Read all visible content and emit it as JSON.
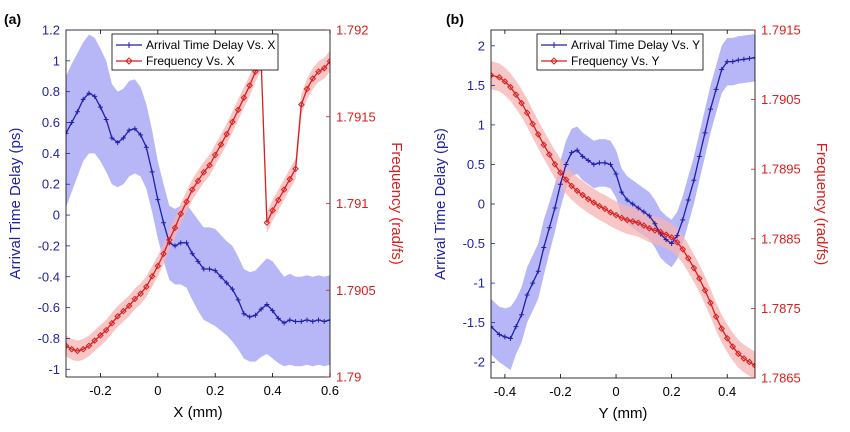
{
  "chart_data": [
    {
      "type": "line",
      "panel_label": "(a)",
      "xlabel": "X (mm)",
      "ylabel_left": "Arrival Time Delay (ps)",
      "ylabel_right": "Frequency (rad/fs)",
      "xlim": [
        -0.32,
        0.6
      ],
      "ylim_left": [
        -1.05,
        1.2
      ],
      "ylim_right": [
        1.79,
        1.792
      ],
      "x_ticks": [
        "-0.2",
        "0",
        "0.2",
        "0.4",
        "0.6"
      ],
      "x_tick_values": [
        -0.2,
        0,
        0.2,
        0.4,
        0.6
      ],
      "left_ticks": [
        "-1",
        "-0.8",
        "-0.6",
        "-0.4",
        "-0.2",
        "0",
        "0.2",
        "0.4",
        "0.6",
        "0.8",
        "1",
        "1.2"
      ],
      "left_tick_values": [
        -1,
        -0.8,
        -0.6,
        -0.4,
        -0.2,
        0,
        0.2,
        0.4,
        0.6,
        0.8,
        1,
        1.2
      ],
      "right_ticks": [
        "1.79",
        "1.7905",
        "1.791",
        "1.7915",
        "1.792"
      ],
      "right_tick_values": [
        1.79,
        1.7905,
        1.791,
        1.7915,
        1.792
      ],
      "legend_position": "top-left",
      "series": [
        {
          "name": "Arrival Time Delay Vs. X",
          "axis": "left",
          "color": "#1f1fa8",
          "band_color": "#9f9ff5",
          "marker": "plus",
          "x": [
            -0.32,
            -0.3,
            -0.28,
            -0.26,
            -0.24,
            -0.22,
            -0.2,
            -0.18,
            -0.16,
            -0.14,
            -0.12,
            -0.1,
            -0.08,
            -0.06,
            -0.04,
            -0.02,
            0.0,
            0.02,
            0.04,
            0.06,
            0.08,
            0.1,
            0.12,
            0.14,
            0.16,
            0.18,
            0.2,
            0.22,
            0.24,
            0.26,
            0.28,
            0.3,
            0.32,
            0.34,
            0.36,
            0.38,
            0.4,
            0.42,
            0.44,
            0.46,
            0.48,
            0.5,
            0.52,
            0.54,
            0.56,
            0.58,
            0.6
          ],
          "y": [
            0.53,
            0.6,
            0.67,
            0.75,
            0.79,
            0.77,
            0.7,
            0.62,
            0.5,
            0.47,
            0.5,
            0.55,
            0.56,
            0.52,
            0.44,
            0.28,
            0.1,
            -0.05,
            -0.18,
            -0.2,
            -0.18,
            -0.18,
            -0.25,
            -0.3,
            -0.35,
            -0.35,
            -0.36,
            -0.4,
            -0.44,
            -0.48,
            -0.55,
            -0.64,
            -0.66,
            -0.65,
            -0.61,
            -0.58,
            -0.62,
            -0.67,
            -0.7,
            -0.68,
            -0.69,
            -0.69,
            -0.68,
            -0.69,
            -0.68,
            -0.69,
            -0.68
          ],
          "band_lower": [
            0.05,
            0.15,
            0.25,
            0.35,
            0.4,
            0.4,
            0.35,
            0.28,
            0.2,
            0.18,
            0.2,
            0.25,
            0.27,
            0.25,
            0.17,
            0.02,
            -0.15,
            -0.3,
            -0.42,
            -0.45,
            -0.45,
            -0.47,
            -0.55,
            -0.62,
            -0.68,
            -0.7,
            -0.72,
            -0.75,
            -0.78,
            -0.82,
            -0.87,
            -0.93,
            -0.95,
            -0.95,
            -0.92,
            -0.9,
            -0.93,
            -0.96,
            -0.98,
            -0.97,
            -0.98,
            -0.98,
            -0.97,
            -0.98,
            -0.97,
            -0.98,
            -0.97
          ],
          "band_upper": [
            0.9,
            0.98,
            1.05,
            1.12,
            1.17,
            1.15,
            1.08,
            1.0,
            0.85,
            0.8,
            0.82,
            0.87,
            0.88,
            0.83,
            0.72,
            0.55,
            0.35,
            0.2,
            0.06,
            0.04,
            0.06,
            0.07,
            0.02,
            -0.03,
            -0.08,
            -0.08,
            -0.09,
            -0.13,
            -0.17,
            -0.2,
            -0.27,
            -0.35,
            -0.37,
            -0.36,
            -0.32,
            -0.28,
            -0.3,
            -0.35,
            -0.4,
            -0.38,
            -0.4,
            -0.4,
            -0.39,
            -0.4,
            -0.39,
            -0.4,
            -0.39
          ]
        },
        {
          "name": "Frequency Vs. X",
          "axis": "right",
          "color": "#d91e1e",
          "band_color": "#f7b3b3",
          "marker": "diamond",
          "x": [
            -0.32,
            -0.3,
            -0.28,
            -0.26,
            -0.24,
            -0.22,
            -0.2,
            -0.18,
            -0.16,
            -0.14,
            -0.12,
            -0.1,
            -0.08,
            -0.06,
            -0.04,
            -0.02,
            0.0,
            0.02,
            0.04,
            0.06,
            0.08,
            0.1,
            0.12,
            0.14,
            0.16,
            0.18,
            0.2,
            0.22,
            0.24,
            0.26,
            0.28,
            0.3,
            0.32,
            0.34,
            0.36,
            0.38,
            0.4,
            0.42,
            0.44,
            0.46,
            0.48,
            0.5,
            0.52,
            0.54,
            0.56,
            0.58,
            0.6
          ],
          "y": [
            1.79018,
            1.79016,
            1.79015,
            1.79016,
            1.79018,
            1.79021,
            1.79024,
            1.79027,
            1.79031,
            1.79035,
            1.79038,
            1.79041,
            1.79045,
            1.79048,
            1.79052,
            1.79058,
            1.79064,
            1.79071,
            1.79079,
            1.79086,
            1.79094,
            1.79101,
            1.79108,
            1.79113,
            1.79118,
            1.79122,
            1.79128,
            1.79134,
            1.7914,
            1.79147,
            1.79154,
            1.79161,
            1.79168,
            1.79176,
            1.79183,
            1.79089,
            1.79096,
            1.79102,
            1.79108,
            1.79114,
            1.7912,
            1.79157,
            1.79166,
            1.79172,
            1.79176,
            1.79178,
            1.79182
          ],
          "band_width": 6e-05
        }
      ]
    },
    {
      "type": "line",
      "panel_label": "(b)",
      "xlabel": "Y (mm)",
      "ylabel_left": "Arrival Time Delay (ps)",
      "ylabel_right": "Frequency (rad/fs)",
      "xlim": [
        -0.45,
        0.5
      ],
      "ylim_left": [
        -2.2,
        2.2
      ],
      "ylim_right": [
        1.7865,
        1.7915
      ],
      "x_ticks": [
        "-0.4",
        "-0.2",
        "0",
        "0.2",
        "0.4"
      ],
      "x_tick_values": [
        -0.4,
        -0.2,
        0,
        0.2,
        0.4
      ],
      "left_ticks": [
        "-2",
        "-1.5",
        "-1",
        "-0.5",
        "0",
        "0.5",
        "1",
        "1.5",
        "2"
      ],
      "left_tick_values": [
        -2,
        -1.5,
        -1,
        -0.5,
        0,
        0.5,
        1,
        1.5,
        2
      ],
      "right_ticks": [
        "1.7865",
        "1.7875",
        "1.7885",
        "1.7895",
        "1.7905",
        "1.7915"
      ],
      "right_tick_values": [
        1.7865,
        1.7875,
        1.7885,
        1.7895,
        1.7905,
        1.7915
      ],
      "legend_position": "top-left",
      "series": [
        {
          "name": "Arrival Time Delay Vs. Y",
          "axis": "left",
          "color": "#1f1fa8",
          "band_color": "#9f9ff5",
          "marker": "plus",
          "x": [
            -0.45,
            -0.42,
            -0.4,
            -0.38,
            -0.36,
            -0.34,
            -0.32,
            -0.3,
            -0.28,
            -0.26,
            -0.24,
            -0.22,
            -0.2,
            -0.18,
            -0.16,
            -0.14,
            -0.12,
            -0.1,
            -0.08,
            -0.06,
            -0.04,
            -0.02,
            0.0,
            0.02,
            0.04,
            0.06,
            0.08,
            0.1,
            0.12,
            0.14,
            0.16,
            0.18,
            0.2,
            0.22,
            0.24,
            0.26,
            0.28,
            0.3,
            0.32,
            0.34,
            0.36,
            0.38,
            0.4,
            0.42,
            0.44,
            0.46,
            0.48,
            0.5
          ],
          "y": [
            -1.55,
            -1.65,
            -1.68,
            -1.7,
            -1.55,
            -1.4,
            -1.15,
            -1.0,
            -0.85,
            -0.55,
            -0.3,
            -0.05,
            0.25,
            0.5,
            0.65,
            0.68,
            0.6,
            0.55,
            0.5,
            0.52,
            0.52,
            0.5,
            0.38,
            0.15,
            0.05,
            0.0,
            -0.05,
            -0.1,
            -0.15,
            -0.25,
            -0.38,
            -0.45,
            -0.5,
            -0.4,
            -0.2,
            0.05,
            0.3,
            0.6,
            0.9,
            1.2,
            1.45,
            1.7,
            1.8,
            1.8,
            1.82,
            1.83,
            1.84,
            1.85
          ],
          "band_lower": [
            -1.9,
            -2.0,
            -2.05,
            -2.1,
            -1.9,
            -1.75,
            -1.5,
            -1.35,
            -1.2,
            -0.9,
            -0.62,
            -0.35,
            -0.05,
            0.2,
            0.35,
            0.38,
            0.3,
            0.25,
            0.2,
            0.22,
            0.22,
            0.2,
            0.08,
            -0.15,
            -0.25,
            -0.3,
            -0.35,
            -0.4,
            -0.45,
            -0.55,
            -0.68,
            -0.75,
            -0.8,
            -0.7,
            -0.5,
            -0.25,
            0.0,
            0.3,
            0.6,
            0.9,
            1.15,
            1.4,
            1.5,
            1.5,
            1.52,
            1.53,
            1.54,
            1.55
          ],
          "band_upper": [
            -1.2,
            -1.3,
            -1.32,
            -1.3,
            -1.2,
            -1.05,
            -0.8,
            -0.65,
            -0.5,
            -0.2,
            0.02,
            0.25,
            0.55,
            0.8,
            0.95,
            0.98,
            0.9,
            0.85,
            0.8,
            0.82,
            0.82,
            0.8,
            0.68,
            0.45,
            0.35,
            0.3,
            0.25,
            0.2,
            0.15,
            0.05,
            -0.08,
            -0.15,
            -0.2,
            -0.1,
            0.1,
            0.35,
            0.6,
            0.9,
            1.2,
            1.5,
            1.75,
            2.0,
            2.1,
            2.1,
            2.12,
            2.13,
            2.14,
            2.15
          ]
        },
        {
          "name": "Frequency Vs. Y",
          "axis": "right",
          "color": "#d91e1e",
          "band_color": "#f7b3b3",
          "marker": "diamond",
          "x": [
            -0.45,
            -0.42,
            -0.4,
            -0.38,
            -0.36,
            -0.34,
            -0.32,
            -0.3,
            -0.28,
            -0.26,
            -0.24,
            -0.22,
            -0.2,
            -0.18,
            -0.16,
            -0.14,
            -0.12,
            -0.1,
            -0.08,
            -0.06,
            -0.04,
            -0.02,
            0.0,
            0.02,
            0.04,
            0.06,
            0.08,
            0.1,
            0.12,
            0.14,
            0.16,
            0.18,
            0.2,
            0.22,
            0.24,
            0.26,
            0.28,
            0.3,
            0.32,
            0.34,
            0.36,
            0.38,
            0.4,
            0.42,
            0.44,
            0.46,
            0.48,
            0.5
          ],
          "y": [
            1.79085,
            1.79082,
            1.79076,
            1.79068,
            1.79057,
            1.79045,
            1.79031,
            1.79015,
            1.79,
            1.78985,
            1.78971,
            1.78957,
            1.78945,
            1.78935,
            1.78926,
            1.78919,
            1.78913,
            1.78907,
            1.78902,
            1.78897,
            1.78893,
            1.78888,
            1.78884,
            1.7888,
            1.78877,
            1.78875,
            1.78873,
            1.78869,
            1.78865,
            1.78862,
            1.7886,
            1.78856,
            1.78852,
            1.78845,
            1.78835,
            1.78822,
            1.78808,
            1.78793,
            1.78776,
            1.78758,
            1.78738,
            1.78721,
            1.78707,
            1.78695,
            1.78685,
            1.78678,
            1.78673,
            1.78668
          ],
          "band_width": 0.0002
        }
      ]
    }
  ]
}
